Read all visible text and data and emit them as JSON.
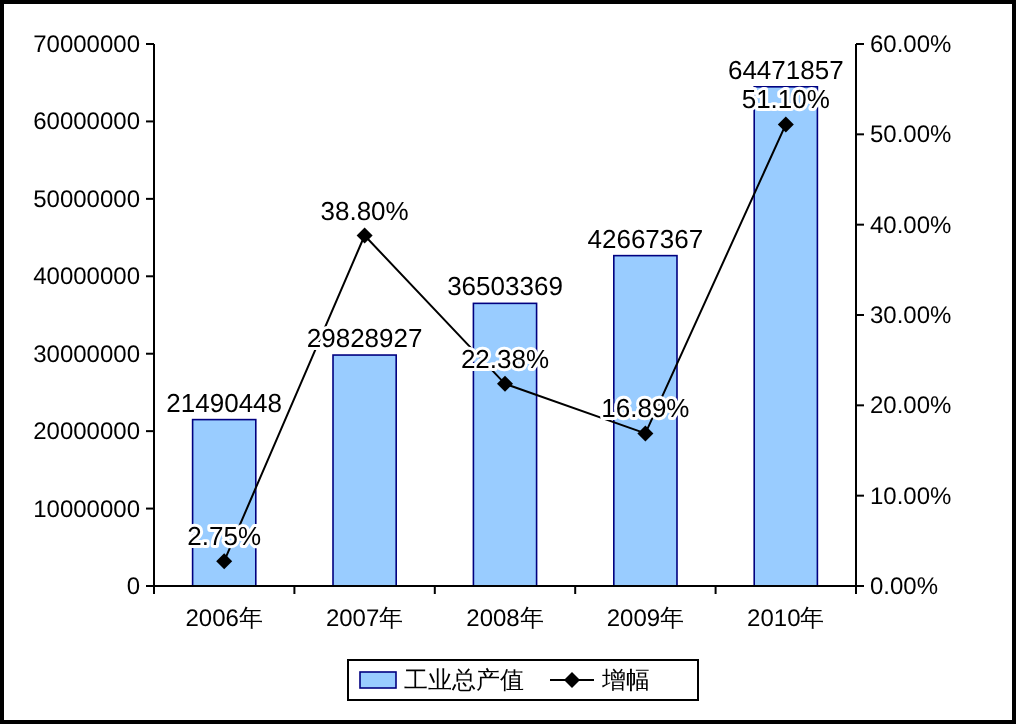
{
  "chart_data": {
    "type": "bar",
    "categories": [
      "2006年",
      "2007年",
      "2008年",
      "2009年",
      "2010年"
    ],
    "series": [
      {
        "name": "工业总产值",
        "color": "#99ccff",
        "values": [
          21490448,
          29828927,
          36503369,
          42667367,
          64471857
        ]
      },
      {
        "name": "增幅",
        "type": "line",
        "axis": "y2",
        "color": "#000000",
        "marker": "diamond",
        "values": [
          2.75,
          38.8,
          22.38,
          16.89,
          51.1
        ],
        "value_labels": [
          "2.75%",
          "38.80%",
          "22.38%",
          "16.89%",
          "51.10%"
        ]
      }
    ],
    "ylim": [
      0,
      70000000
    ],
    "yticks": [
      0,
      10000000,
      20000000,
      30000000,
      40000000,
      50000000,
      60000000,
      70000000
    ],
    "y2lim": [
      0,
      60
    ],
    "y2ticks": [
      {
        "value": 0,
        "label": "0.00%"
      },
      {
        "value": 10,
        "label": "10.00%"
      },
      {
        "value": 20,
        "label": "20.00%"
      },
      {
        "value": 30,
        "label": "30.00%"
      },
      {
        "value": 40,
        "label": "40.00%"
      },
      {
        "value": 50,
        "label": "50.00%"
      },
      {
        "value": 60,
        "label": "60.00%"
      }
    ],
    "data_labels": true,
    "legend": "bottom",
    "grid": false
  }
}
